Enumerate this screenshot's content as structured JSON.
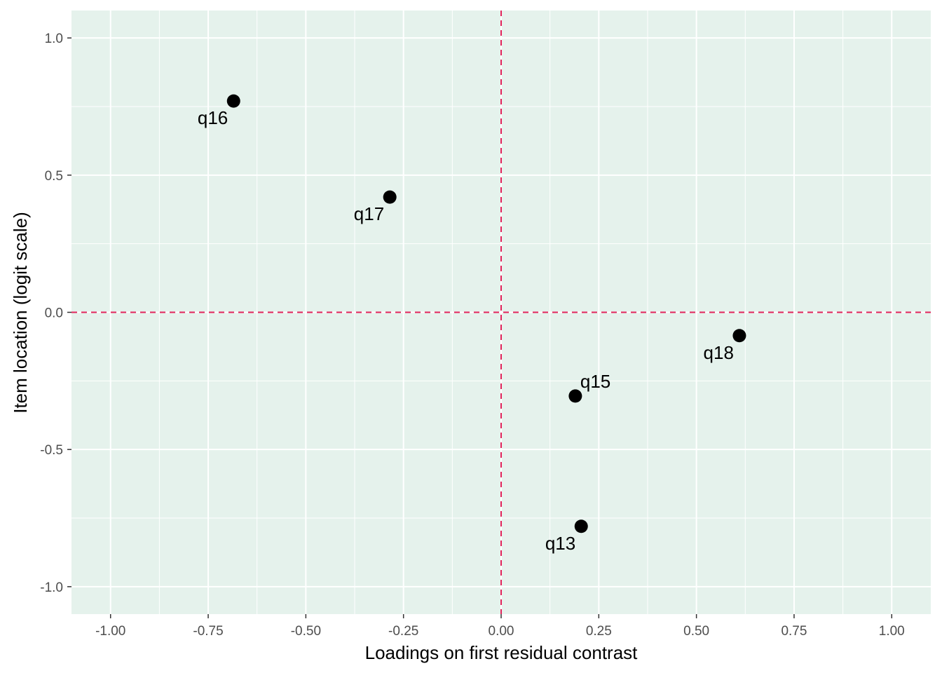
{
  "colors": {
    "panel_background": "#e5f2ec",
    "grid": "#ffffff",
    "reference_line": "#e3245c",
    "point": "#000000",
    "tick_text": "#4d4d4d"
  },
  "chart_data": {
    "type": "scatter",
    "title": "",
    "xlabel": "Loadings on first residual contrast",
    "ylabel": "Item location (logit scale)",
    "xlim": [
      -1.1,
      1.1
    ],
    "ylim": [
      -1.1,
      1.1
    ],
    "x_ticks": [
      -1.0,
      -0.75,
      -0.5,
      -0.25,
      0.0,
      0.25,
      0.5,
      0.75,
      1.0
    ],
    "x_tick_labels": [
      "-1.00",
      "-0.75",
      "-0.50",
      "-0.25",
      "0.00",
      "0.25",
      "0.50",
      "0.75",
      "1.00"
    ],
    "y_ticks": [
      -1.0,
      -0.5,
      0.0,
      0.5,
      1.0
    ],
    "y_tick_labels": [
      "-1.0",
      "-0.5",
      "0.0",
      "0.5",
      "1.0"
    ],
    "grid": true,
    "reference_lines": {
      "x": 0,
      "y": 0,
      "style": "dashed"
    },
    "points": [
      {
        "label": "q16",
        "x": -0.685,
        "y": 0.77,
        "label_position": "bottom-left"
      },
      {
        "label": "q17",
        "x": -0.285,
        "y": 0.42,
        "label_position": "bottom-left"
      },
      {
        "label": "q18",
        "x": 0.61,
        "y": -0.085,
        "label_position": "bottom-left"
      },
      {
        "label": "q15",
        "x": 0.19,
        "y": -0.305,
        "label_position": "top-right"
      },
      {
        "label": "q13",
        "x": 0.205,
        "y": -0.78,
        "label_position": "bottom-left"
      }
    ]
  }
}
